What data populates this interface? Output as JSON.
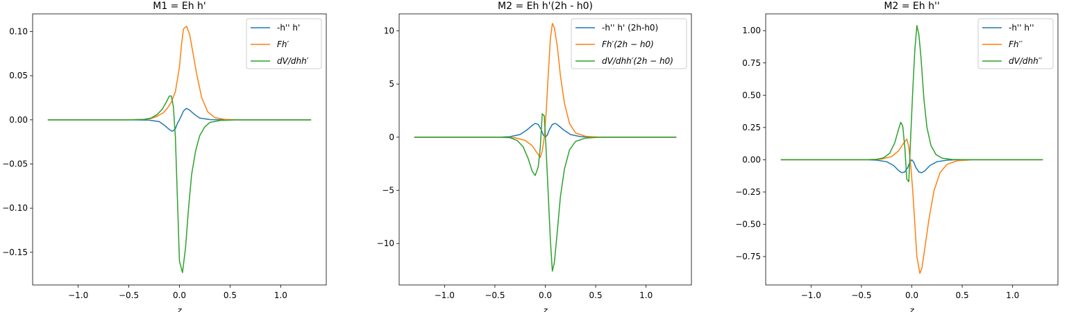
{
  "chart_data": [
    {
      "type": "line",
      "title": "M1 = Eh h'",
      "xlabel": "z",
      "ylabel": "",
      "xlim": [
        -1.45,
        1.45
      ],
      "ylim": [
        -0.187,
        0.12
      ],
      "xticks": [
        -1.0,
        -0.5,
        0.0,
        0.5,
        1.0
      ],
      "xtick_labels": [
        "−1.0",
        "−0.5",
        "0.0",
        "0.5",
        "1.0"
      ],
      "yticks": [
        0.1,
        0.05,
        0.0,
        -0.05,
        -0.1,
        -0.15
      ],
      "ytick_labels": [
        "0.10",
        "0.05",
        "0.00",
        "−0.05",
        "−0.10",
        "−0.15"
      ],
      "legend_position": "top-right",
      "series": [
        {
          "name": "-h'' h'",
          "color": "#1f77b4",
          "points": [
            [
              -1.3,
              0
            ],
            [
              -0.5,
              0
            ],
            [
              -0.3,
              -0.0003
            ],
            [
              -0.2,
              -0.002
            ],
            [
              -0.15,
              -0.006
            ],
            [
              -0.1,
              -0.011
            ],
            [
              -0.07,
              -0.013
            ],
            [
              -0.04,
              -0.01
            ],
            [
              -0.02,
              -0.004
            ],
            [
              0,
              0
            ],
            [
              0.02,
              0.005
            ],
            [
              0.04,
              0.01
            ],
            [
              0.07,
              0.013
            ],
            [
              0.1,
              0.011
            ],
            [
              0.15,
              0.006
            ],
            [
              0.2,
              0.002
            ],
            [
              0.3,
              0.0003
            ],
            [
              0.5,
              0
            ],
            [
              1.3,
              0
            ]
          ]
        },
        {
          "name": "Fh′",
          "color": "#ff7f0e",
          "points": [
            [
              -1.3,
              0
            ],
            [
              -0.5,
              0
            ],
            [
              -0.35,
              0.0005
            ],
            [
              -0.28,
              0.0015
            ],
            [
              -0.22,
              0.004
            ],
            [
              -0.16,
              0.008
            ],
            [
              -0.12,
              0.013
            ],
            [
              -0.08,
              0.02
            ],
            [
              -0.04,
              0.032
            ],
            [
              0,
              0.06
            ],
            [
              0.02,
              0.085
            ],
            [
              0.04,
              0.103
            ],
            [
              0.07,
              0.106
            ],
            [
              0.1,
              0.097
            ],
            [
              0.13,
              0.078
            ],
            [
              0.17,
              0.052
            ],
            [
              0.22,
              0.025
            ],
            [
              0.28,
              0.009
            ],
            [
              0.35,
              0.0025
            ],
            [
              0.45,
              0.0005
            ],
            [
              0.6,
              0
            ],
            [
              1.3,
              0
            ]
          ]
        },
        {
          "name": "dV/dhh′",
          "color": "#2ca02c",
          "points": [
            [
              -1.3,
              0
            ],
            [
              -0.5,
              0
            ],
            [
              -0.35,
              0.0005
            ],
            [
              -0.28,
              0.002
            ],
            [
              -0.22,
              0.006
            ],
            [
              -0.17,
              0.012
            ],
            [
              -0.13,
              0.02
            ],
            [
              -0.1,
              0.027
            ],
            [
              -0.08,
              0.027
            ],
            [
              -0.06,
              0.015
            ],
            [
              -0.04,
              -0.02
            ],
            [
              -0.02,
              -0.09
            ],
            [
              0,
              -0.16
            ],
            [
              0.03,
              -0.173
            ],
            [
              0.06,
              -0.145
            ],
            [
              0.09,
              -0.1
            ],
            [
              0.12,
              -0.062
            ],
            [
              0.16,
              -0.035
            ],
            [
              0.2,
              -0.018
            ],
            [
              0.25,
              -0.008
            ],
            [
              0.3,
              -0.003
            ],
            [
              0.4,
              -0.0007
            ],
            [
              0.55,
              0
            ],
            [
              1.3,
              0
            ]
          ]
        }
      ]
    },
    {
      "type": "line",
      "title": "M2 = Eh h'(2h - h0)",
      "xlabel": "z",
      "ylabel": "",
      "xlim": [
        -1.45,
        1.45
      ],
      "ylim": [
        -13.9,
        11.6
      ],
      "xticks": [
        -1.0,
        -0.5,
        0.0,
        0.5,
        1.0
      ],
      "xtick_labels": [
        "−1.0",
        "−0.5",
        "0.0",
        "0.5",
        "1.0"
      ],
      "yticks": [
        10,
        5,
        0,
        -5,
        -10
      ],
      "ytick_labels": [
        "10",
        "5",
        "0",
        "−5",
        "−10"
      ],
      "legend_position": "top-right",
      "series": [
        {
          "name": "-h'' h' (2h-h0)",
          "color": "#1f77b4",
          "points": [
            [
              -1.3,
              0
            ],
            [
              -0.45,
              0
            ],
            [
              -0.35,
              0.05
            ],
            [
              -0.25,
              0.25
            ],
            [
              -0.18,
              0.7
            ],
            [
              -0.13,
              1.1
            ],
            [
              -0.1,
              1.3
            ],
            [
              -0.07,
              1.2
            ],
            [
              -0.04,
              0.7
            ],
            [
              -0.02,
              0.2
            ],
            [
              0,
              0
            ],
            [
              0.02,
              0.2
            ],
            [
              0.04,
              0.7
            ],
            [
              0.07,
              1.2
            ],
            [
              0.1,
              1.3
            ],
            [
              0.13,
              1.1
            ],
            [
              0.18,
              0.7
            ],
            [
              0.25,
              0.25
            ],
            [
              0.35,
              0.05
            ],
            [
              0.45,
              0
            ],
            [
              1.3,
              0
            ]
          ]
        },
        {
          "name": "Fh′(2h − h0)",
          "color": "#ff7f0e",
          "points": [
            [
              -1.3,
              0
            ],
            [
              -0.45,
              0
            ],
            [
              -0.3,
              -0.05
            ],
            [
              -0.2,
              -0.3
            ],
            [
              -0.13,
              -0.8
            ],
            [
              -0.08,
              -1.5
            ],
            [
              -0.05,
              -1.9
            ],
            [
              -0.03,
              -1.3
            ],
            [
              -0.01,
              0
            ],
            [
              0.01,
              2.5
            ],
            [
              0.03,
              6
            ],
            [
              0.05,
              9.2
            ],
            [
              0.07,
              10.7
            ],
            [
              0.09,
              10.3
            ],
            [
              0.12,
              8.5
            ],
            [
              0.15,
              5.8
            ],
            [
              0.19,
              3.2
            ],
            [
              0.24,
              1.3
            ],
            [
              0.3,
              0.4
            ],
            [
              0.4,
              0.08
            ],
            [
              0.55,
              0
            ],
            [
              1.3,
              0
            ]
          ]
        },
        {
          "name": "dV/dhh′(2h − h0)",
          "color": "#2ca02c",
          "points": [
            [
              -1.3,
              0
            ],
            [
              -0.45,
              0
            ],
            [
              -0.35,
              -0.05
            ],
            [
              -0.28,
              -0.3
            ],
            [
              -0.22,
              -0.9
            ],
            [
              -0.17,
              -2
            ],
            [
              -0.13,
              -3.2
            ],
            [
              -0.1,
              -3.6
            ],
            [
              -0.07,
              -2.8
            ],
            [
              -0.05,
              -1
            ],
            [
              -0.03,
              2.2
            ],
            [
              -0.01,
              2
            ],
            [
              0.01,
              -1.5
            ],
            [
              0.03,
              -5.5
            ],
            [
              0.05,
              -9.6
            ],
            [
              0.07,
              -12.6
            ],
            [
              0.09,
              -11.8
            ],
            [
              0.12,
              -8.8
            ],
            [
              0.15,
              -5.6
            ],
            [
              0.19,
              -3
            ],
            [
              0.24,
              -1.2
            ],
            [
              0.3,
              -0.4
            ],
            [
              0.4,
              -0.08
            ],
            [
              0.55,
              0
            ],
            [
              1.3,
              0
            ]
          ]
        }
      ]
    },
    {
      "type": "line",
      "title": "M2 = Eh h''",
      "xlabel": "z",
      "ylabel": "",
      "xlim": [
        -1.45,
        1.45
      ],
      "ylim": [
        -0.97,
        1.13
      ],
      "xticks": [
        -1.0,
        -0.5,
        0.0,
        0.5,
        1.0
      ],
      "xtick_labels": [
        "−1.0",
        "−0.5",
        "0.0",
        "0.5",
        "1.0"
      ],
      "yticks": [
        1.0,
        0.75,
        0.5,
        0.25,
        0.0,
        -0.25,
        -0.5,
        -0.75
      ],
      "ytick_labels": [
        "1.00",
        "0.75",
        "0.50",
        "0.25",
        "0.00",
        "−0.25",
        "−0.50",
        "−0.75"
      ],
      "legend_position": "top-right",
      "series": [
        {
          "name": "-h'' h''",
          "color": "#1f77b4",
          "points": [
            [
              -1.3,
              0
            ],
            [
              -0.45,
              0
            ],
            [
              -0.35,
              -0.003
            ],
            [
              -0.25,
              -0.015
            ],
            [
              -0.18,
              -0.045
            ],
            [
              -0.13,
              -0.085
            ],
            [
              -0.1,
              -0.1
            ],
            [
              -0.07,
              -0.095
            ],
            [
              -0.04,
              -0.06
            ],
            [
              -0.02,
              -0.02
            ],
            [
              0,
              0
            ],
            [
              0.02,
              -0.02
            ],
            [
              0.04,
              -0.06
            ],
            [
              0.07,
              -0.095
            ],
            [
              0.1,
              -0.1
            ],
            [
              0.13,
              -0.085
            ],
            [
              0.18,
              -0.045
            ],
            [
              0.25,
              -0.015
            ],
            [
              0.35,
              -0.003
            ],
            [
              0.45,
              0
            ],
            [
              1.3,
              0
            ]
          ]
        },
        {
          "name": "Fh′′",
          "color": "#ff7f0e",
          "points": [
            [
              -1.3,
              0
            ],
            [
              -0.45,
              0
            ],
            [
              -0.3,
              0.005
            ],
            [
              -0.2,
              0.025
            ],
            [
              -0.13,
              0.07
            ],
            [
              -0.08,
              0.13
            ],
            [
              -0.05,
              0.16
            ],
            [
              -0.03,
              0.1
            ],
            [
              -0.01,
              -0.05
            ],
            [
              0.01,
              -0.25
            ],
            [
              0.03,
              -0.5
            ],
            [
              0.05,
              -0.75
            ],
            [
              0.08,
              -0.88
            ],
            [
              0.1,
              -0.84
            ],
            [
              0.13,
              -0.68
            ],
            [
              0.17,
              -0.46
            ],
            [
              0.22,
              -0.24
            ],
            [
              0.28,
              -0.1
            ],
            [
              0.35,
              -0.035
            ],
            [
              0.45,
              -0.008
            ],
            [
              0.6,
              0
            ],
            [
              1.3,
              0
            ]
          ]
        },
        {
          "name": "dV/dhh′′",
          "color": "#2ca02c",
          "points": [
            [
              -1.3,
              0
            ],
            [
              -0.45,
              0
            ],
            [
              -0.35,
              0.003
            ],
            [
              -0.28,
              0.015
            ],
            [
              -0.22,
              0.05
            ],
            [
              -0.17,
              0.13
            ],
            [
              -0.13,
              0.24
            ],
            [
              -0.11,
              0.29
            ],
            [
              -0.09,
              0.26
            ],
            [
              -0.07,
              0.1
            ],
            [
              -0.05,
              -0.15
            ],
            [
              -0.03,
              -0.17
            ],
            [
              -0.01,
              0.2
            ],
            [
              0.01,
              0.55
            ],
            [
              0.03,
              0.85
            ],
            [
              0.05,
              1.04
            ],
            [
              0.07,
              0.97
            ],
            [
              0.09,
              0.8
            ],
            [
              0.12,
              0.47
            ],
            [
              0.15,
              0.25
            ],
            [
              0.19,
              0.11
            ],
            [
              0.24,
              0.04
            ],
            [
              0.3,
              0.012
            ],
            [
              0.4,
              0.002
            ],
            [
              0.55,
              0
            ],
            [
              1.3,
              0
            ]
          ]
        }
      ]
    }
  ]
}
